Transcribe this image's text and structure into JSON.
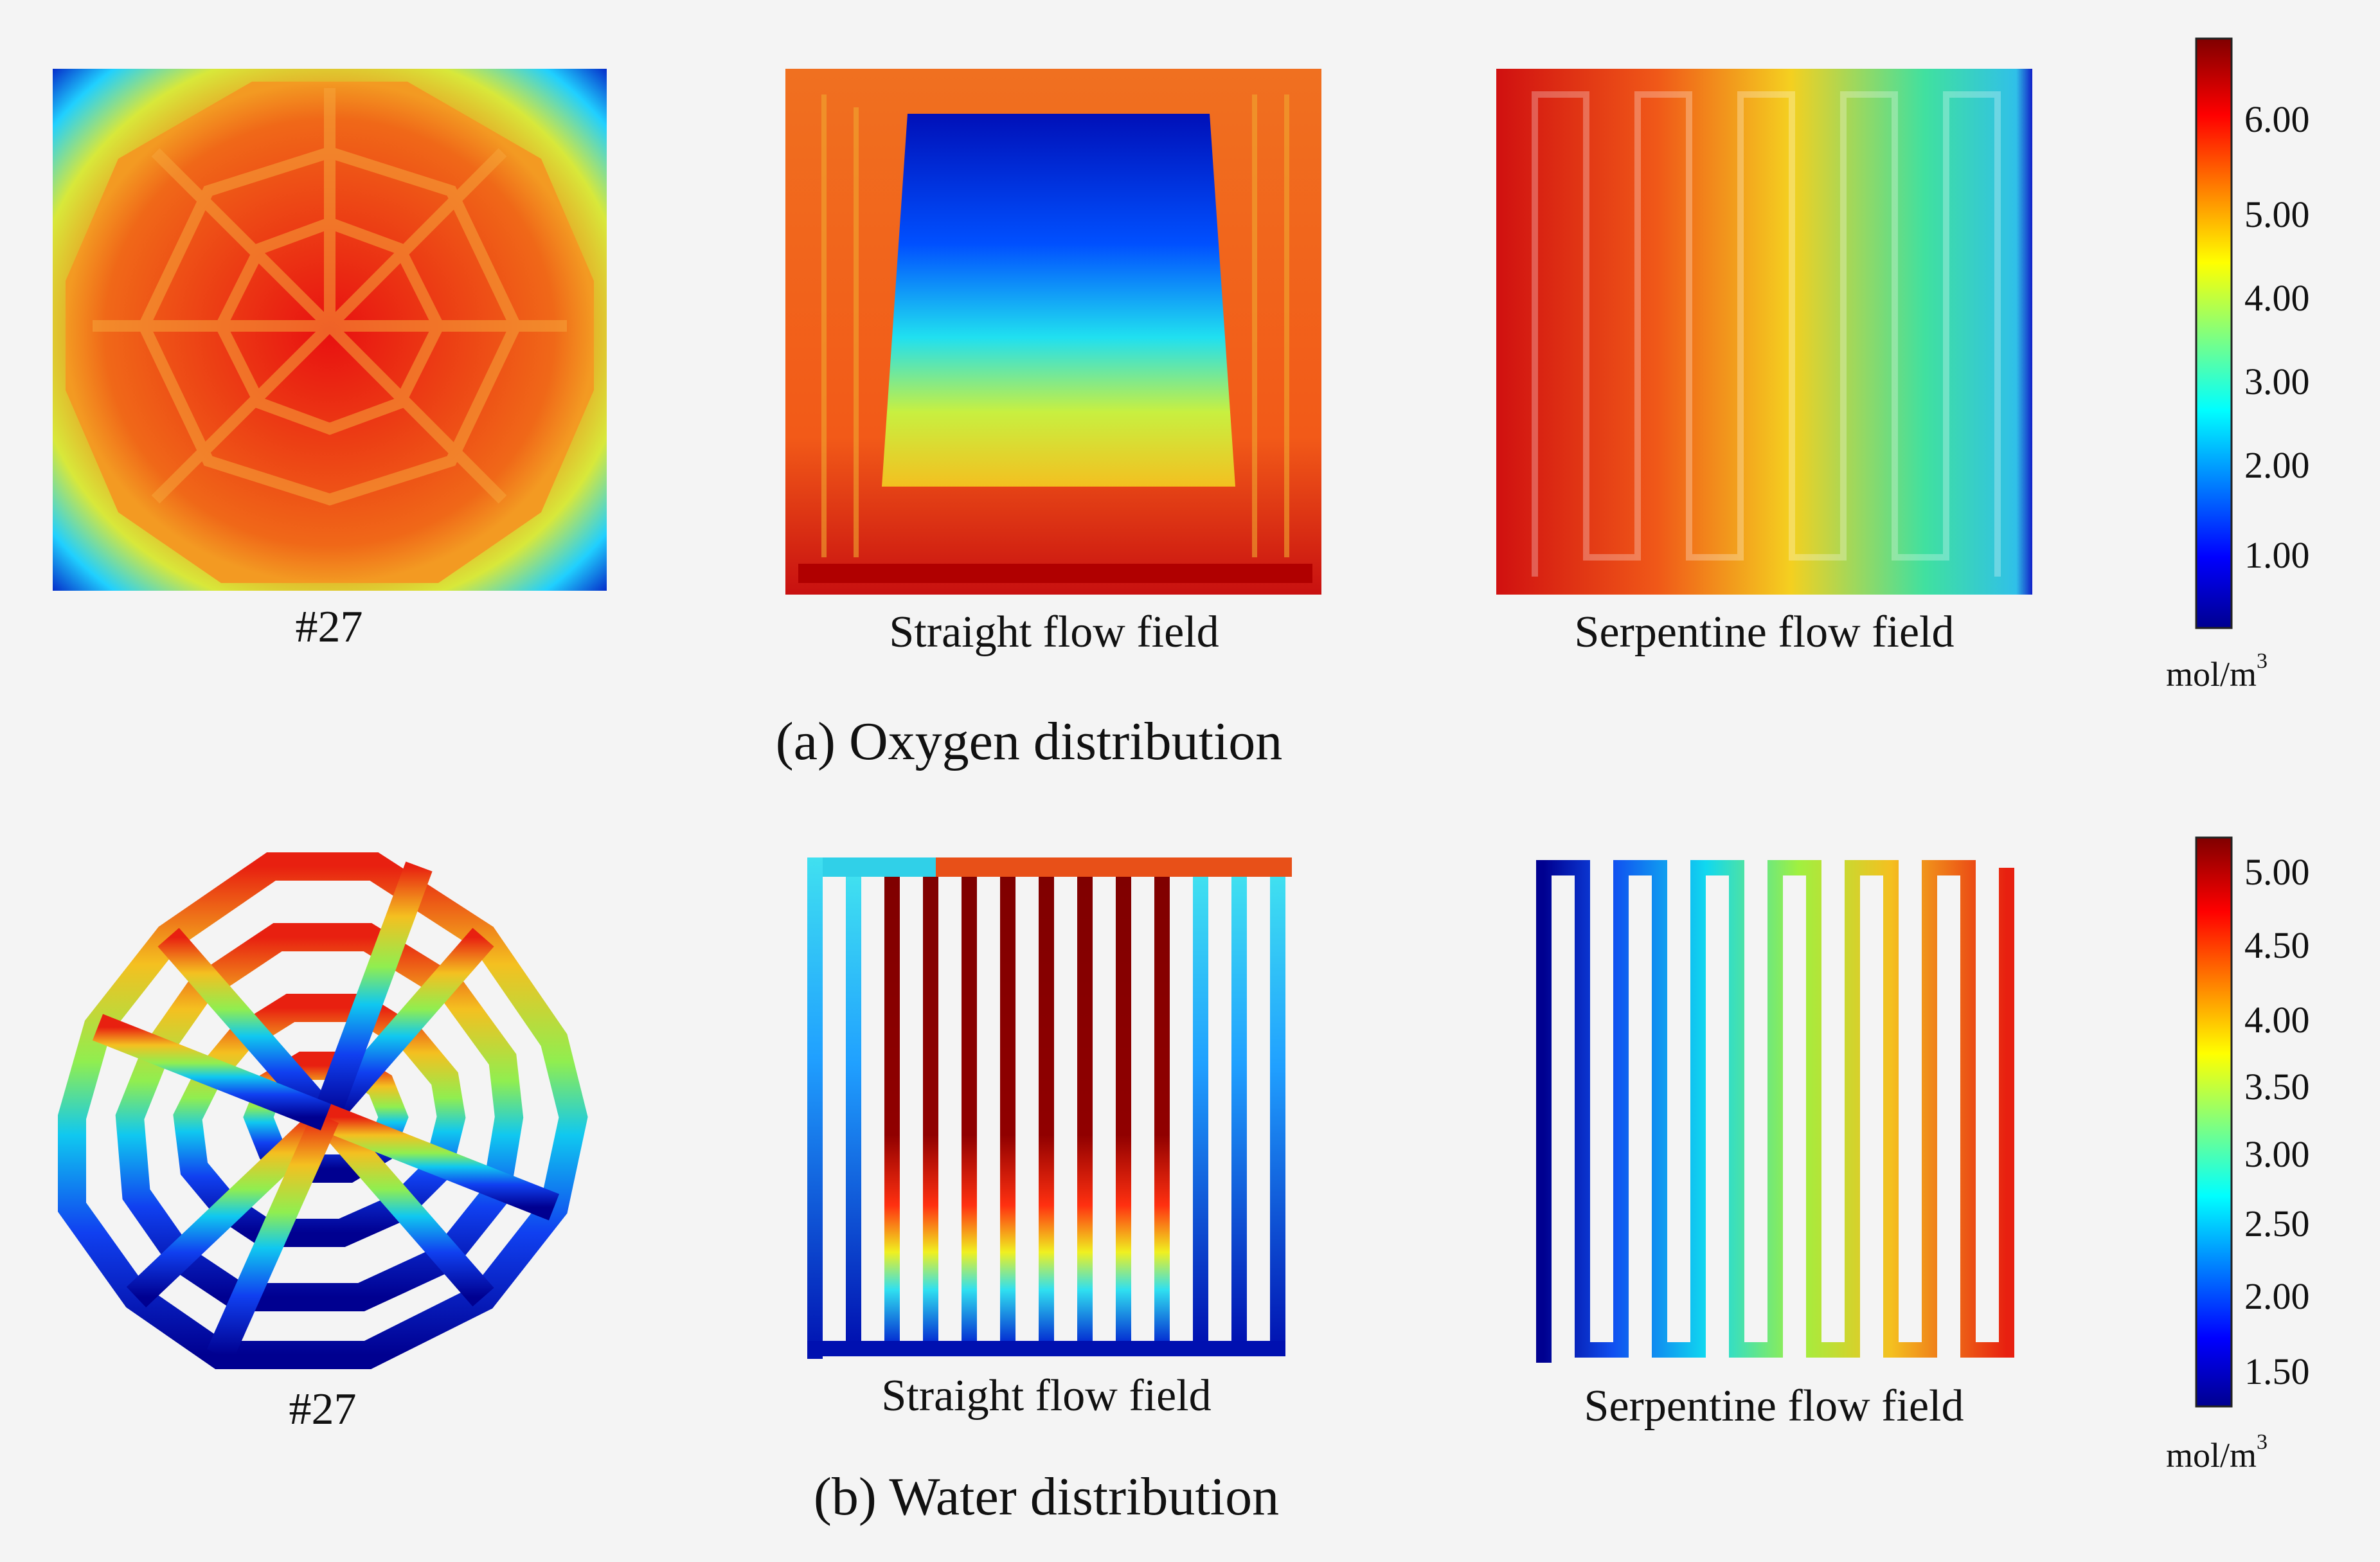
{
  "oxygen": {
    "panels": [
      {
        "label": "#27"
      },
      {
        "label": "Straight flow field"
      },
      {
        "label": "Serpentine flow field"
      }
    ],
    "caption": "(a) Oxygen distribution",
    "colorbar": {
      "ticks": [
        "6.00",
        "5.00",
        "4.00",
        "3.00",
        "2.00",
        "1.00"
      ],
      "unit": "mol/m",
      "unit_sup": "3"
    }
  },
  "water": {
    "panels": [
      {
        "label": "#27"
      },
      {
        "label": "Straight flow field"
      },
      {
        "label": "Serpentine flow field"
      }
    ],
    "caption": "(b) Water distribution",
    "colorbar": {
      "ticks": [
        "5.00",
        "4.50",
        "4.00",
        "3.50",
        "3.00",
        "2.50",
        "2.00",
        "1.50"
      ],
      "unit": "mol/m",
      "unit_sup": "3"
    }
  },
  "colormap": [
    "#00008f",
    "#0000ff",
    "#00ffff",
    "#ffff00",
    "#ff0000",
    "#800000"
  ]
}
